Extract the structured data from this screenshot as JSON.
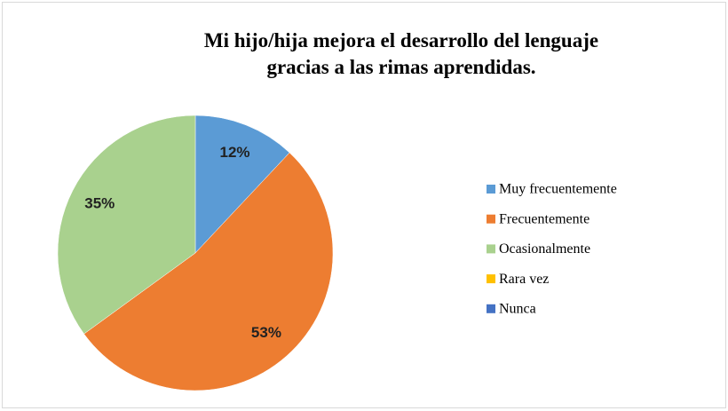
{
  "chart_data": {
    "type": "pie",
    "title": "Mi hijo/hija mejora el desarrollo del lenguaje gracias a las rimas aprendidas.",
    "categories": [
      "Muy frecuentemente",
      "Frecuentemente",
      "Ocasionalmente",
      "Rara vez",
      "Nunca"
    ],
    "values": [
      12,
      53,
      35,
      0,
      0
    ],
    "value_labels": [
      "12%",
      "53%",
      "35%",
      null,
      null
    ],
    "colors": [
      "#5b9bd5",
      "#ed7d31",
      "#a9d18e",
      "#ffc000",
      "#4472c4"
    ],
    "legend": "right"
  }
}
